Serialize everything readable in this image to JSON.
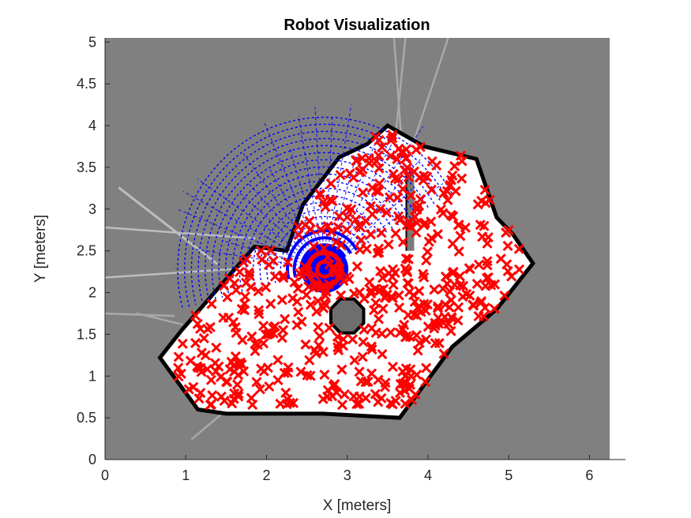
{
  "chart_data": {
    "type": "scatter",
    "title": "Robot Visualization",
    "xlabel": "X [meters]",
    "ylabel": "Y [meters]",
    "xlim": [
      0,
      6.25
    ],
    "ylim": [
      0,
      5.05
    ],
    "xticks": [
      "0",
      "1",
      "2",
      "3",
      "4",
      "5",
      "6"
    ],
    "yticks": [
      "0",
      "0.5",
      "1",
      "1.5",
      "2",
      "2.5",
      "3",
      "3.5",
      "4",
      "4.5",
      "5"
    ],
    "grid": false,
    "background_map": "occupancy grid",
    "robot_pose": {
      "x": 2.72,
      "y": 2.28
    },
    "colors": {
      "unknown": "#808080",
      "free": "#ffffff",
      "occupied": "#000000",
      "particles": "#ff0000",
      "scan_rays": "#0000ff",
      "robot": "#0000ff"
    },
    "room_polygon": [
      [
        0.68,
        1.22
      ],
      [
        0.95,
        1.55
      ],
      [
        1.85,
        2.55
      ],
      [
        2.25,
        2.5
      ],
      [
        2.45,
        3.05
      ],
      [
        2.9,
        3.62
      ],
      [
        3.25,
        3.78
      ],
      [
        3.5,
        4.0
      ],
      [
        3.95,
        3.75
      ],
      [
        4.6,
        3.6
      ],
      [
        4.85,
        2.9
      ],
      [
        5.05,
        2.7
      ],
      [
        5.3,
        2.35
      ],
      [
        4.85,
        1.8
      ],
      [
        4.3,
        1.35
      ],
      [
        3.65,
        0.5
      ],
      [
        2.7,
        0.55
      ],
      [
        1.5,
        0.55
      ],
      [
        1.15,
        0.6
      ]
    ],
    "obstacles": [
      {
        "type": "octagon",
        "cx": 3.0,
        "cy": 1.72,
        "r": 0.22
      },
      {
        "type": "wall",
        "from": [
          3.78,
          2.5
        ],
        "to": [
          3.78,
          3.45
        ]
      }
    ]
  }
}
